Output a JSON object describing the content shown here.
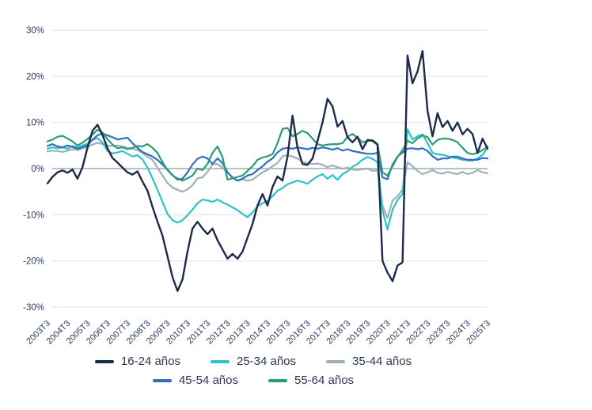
{
  "chart": {
    "y_ticks": [
      "30%",
      "20%",
      "10%",
      "0%",
      "-10%",
      "-20%",
      "-30%"
    ],
    "y_tick_values": [
      30,
      20,
      10,
      0,
      -10,
      -20,
      -30
    ],
    "colors": {
      "grid": "#e5e6e8",
      "zero_line": "#bcbfc3",
      "axis_text": "#2c3a5c",
      "legend_text": "#2b3950"
    }
  },
  "chart_data": {
    "type": "line",
    "title": "",
    "xlabel": "",
    "ylabel": "",
    "x_unit": "quarter",
    "x_start": "2003T3",
    "x_end": "2025T3",
    "points_per_year": 4,
    "ylim": [
      -30,
      30
    ],
    "grid": "horizontal",
    "legend_position": "bottom",
    "x_tick_labels": [
      "2003T3",
      "2004T3",
      "2005T3",
      "2006T3",
      "2007T3",
      "2008T3",
      "2009T3",
      "2010T3",
      "2011T3",
      "2012T3",
      "2013T3",
      "2014T3",
      "2015T3",
      "2016T3",
      "2017T3",
      "2018T3",
      "2019T3",
      "2020T3",
      "2021T3",
      "2022T3",
      "2023T3",
      "2024T3",
      "2025T3"
    ],
    "series": [
      {
        "name": "16-24 años",
        "color": "#1c2b4a",
        "values": [
          -3.2,
          -1.8,
          -0.8,
          -0.4,
          -0.9,
          -0.2,
          -2.2,
          0.3,
          4.5,
          8.2,
          9.5,
          7.3,
          4.4,
          2.3,
          1.3,
          0.2,
          -0.8,
          -1.3,
          -0.6,
          -2.8,
          -4.8,
          -8.3,
          -11.5,
          -14.5,
          -19.0,
          -23.5,
          -26.5,
          -24.0,
          -18.0,
          -13.0,
          -11.5,
          -13.0,
          -14.2,
          -13.0,
          -15.5,
          -17.5,
          -19.5,
          -18.5,
          -19.5,
          -18.0,
          -15.0,
          -12.0,
          -8.0,
          -5.5,
          -8.0,
          -4.0,
          -1.7,
          -2.6,
          2.6,
          11.5,
          4.5,
          1.0,
          0.8,
          2.2,
          6.0,
          10.0,
          15.1,
          13.5,
          9.1,
          10.3,
          6.8,
          5.7,
          6.9,
          4.2,
          6.2,
          6.0,
          5.2,
          -20.0,
          -22.5,
          -24.4,
          -21.0,
          -20.3,
          24.5,
          18.5,
          21.0,
          25.5,
          12.5,
          7.0,
          12.0,
          9.0,
          10.3,
          8.2,
          10.0,
          7.4,
          8.6,
          7.5,
          3.4,
          6.5,
          4.3
        ]
      },
      {
        "name": "25-34 años",
        "color": "#2cc3c6",
        "values": [
          4.3,
          4.6,
          4.4,
          4.6,
          4.3,
          4.9,
          4.6,
          5.0,
          5.4,
          6.2,
          6.6,
          5.6,
          3.8,
          3.3,
          3.5,
          3.8,
          3.2,
          2.6,
          2.9,
          2.0,
          0.2,
          -2.1,
          -4.6,
          -7.2,
          -9.8,
          -11.2,
          -11.7,
          -11.2,
          -10.1,
          -8.9,
          -7.5,
          -6.7,
          -6.9,
          -7.2,
          -6.7,
          -7.3,
          -7.8,
          -8.4,
          -9.0,
          -9.8,
          -10.5,
          -9.5,
          -8.2,
          -7.5,
          -7.0,
          -6.0,
          -4.8,
          -4.2,
          -3.4,
          -3.0,
          -2.6,
          -2.9,
          -3.3,
          -2.4,
          -1.7,
          -1.2,
          -2.2,
          -1.4,
          -2.4,
          -1.2,
          -0.6,
          0.4,
          1.0,
          1.9,
          2.5,
          2.1,
          1.4,
          -9.0,
          -13.2,
          -8.9,
          -6.8,
          -5.5,
          8.5,
          6.3,
          7.0,
          7.4,
          5.5,
          3.4,
          3.1,
          3.0,
          2.7,
          2.4,
          2.2,
          1.9,
          1.8,
          1.7,
          2.2,
          3.0,
          4.4
        ]
      },
      {
        "name": "35-44 años",
        "color": "#9cb0bd",
        "values": [
          3.7,
          3.9,
          3.8,
          3.6,
          3.9,
          4.2,
          4.0,
          4.4,
          4.7,
          5.2,
          5.6,
          5.3,
          5.0,
          4.9,
          5.0,
          4.8,
          4.5,
          4.3,
          4.0,
          3.4,
          2.6,
          1.9,
          0.2,
          -1.5,
          -3.1,
          -4.1,
          -4.6,
          -5.0,
          -4.5,
          -3.6,
          -2.1,
          -1.9,
          -0.7,
          0.9,
          1.0,
          0.2,
          -1.0,
          -1.8,
          -2.6,
          -2.3,
          -2.6,
          -2.4,
          -1.6,
          -0.8,
          -0.3,
          0.5,
          1.2,
          2.7,
          2.9,
          2.6,
          2.2,
          1.4,
          1.2,
          1.0,
          1.1,
          0.8,
          0.3,
          0.7,
          0.3,
          0.0,
          0.2,
          -0.2,
          -0.3,
          -0.1,
          0.0,
          -0.5,
          -0.3,
          -8.0,
          -10.7,
          -6.9,
          -6.0,
          -4.5,
          1.4,
          0.5,
          -0.5,
          -1.2,
          -0.8,
          -0.3,
          -0.9,
          -1.1,
          -0.7,
          -1.0,
          -1.2,
          -0.7,
          -1.2,
          -0.9,
          -0.3,
          -0.8,
          -1.0
        ]
      },
      {
        "name": "45-54 años",
        "color": "#2e6fc1",
        "values": [
          4.9,
          5.3,
          4.8,
          4.6,
          5.0,
          4.7,
          4.3,
          4.6,
          5.0,
          6.3,
          7.2,
          7.6,
          7.2,
          6.8,
          6.3,
          6.5,
          6.7,
          5.5,
          4.5,
          3.6,
          3.1,
          2.6,
          1.9,
          0.9,
          -0.2,
          -1.4,
          -2.4,
          -2.2,
          -0.8,
          0.9,
          2.1,
          2.6,
          2.2,
          1.0,
          2.2,
          1.2,
          -0.8,
          -2.0,
          -2.6,
          -2.2,
          -1.5,
          -1.2,
          -0.3,
          0.5,
          1.5,
          2.2,
          3.5,
          4.3,
          4.5,
          4.3,
          4.6,
          4.4,
          4.2,
          4.5,
          4.3,
          4.6,
          4.4,
          4.1,
          4.4,
          3.9,
          4.2,
          3.8,
          3.6,
          3.4,
          3.2,
          3.2,
          3.4,
          -1.9,
          -2.3,
          0.9,
          2.6,
          3.5,
          4.3,
          4.4,
          4.2,
          4.4,
          3.8,
          2.7,
          1.9,
          2.2,
          2.2,
          2.6,
          2.6,
          2.2,
          1.9,
          1.9,
          1.9,
          2.3,
          2.2
        ]
      },
      {
        "name": "55-64 años",
        "color": "#2a9d74",
        "values": [
          5.9,
          6.3,
          6.9,
          7.1,
          6.5,
          5.9,
          5.0,
          5.6,
          6.4,
          7.4,
          8.4,
          7.8,
          6.4,
          5.2,
          4.4,
          4.6,
          4.2,
          4.5,
          4.9,
          4.8,
          5.3,
          4.5,
          3.4,
          1.4,
          -0.3,
          -1.5,
          -2.1,
          -2.6,
          -2.1,
          -1.5,
          0.0,
          -0.3,
          1.0,
          3.4,
          4.8,
          2.5,
          -2.4,
          -2.1,
          -1.8,
          -1.5,
          -0.5,
          0.5,
          1.9,
          2.4,
          2.7,
          3.1,
          5.5,
          8.6,
          8.8,
          7.0,
          7.5,
          8.2,
          7.7,
          6.5,
          5.3,
          5.0,
          5.2,
          5.3,
          5.3,
          5.5,
          6.9,
          7.5,
          6.7,
          5.7,
          6.0,
          6.2,
          5.3,
          -0.8,
          -1.5,
          0.5,
          2.5,
          4.0,
          6.0,
          5.5,
          6.5,
          7.2,
          6.8,
          5.2,
          6.2,
          6.5,
          6.5,
          6.2,
          5.7,
          4.5,
          3.4,
          3.1,
          3.4,
          4.0,
          4.8
        ]
      }
    ]
  }
}
